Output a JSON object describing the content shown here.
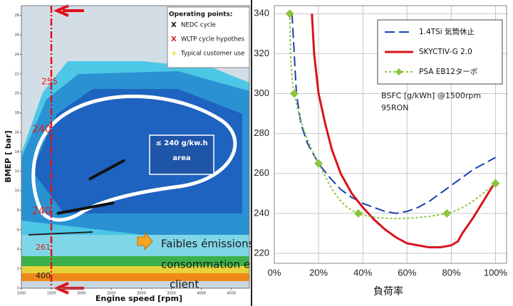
{
  "chart_data": [
    {
      "type": "map",
      "y_label": "BMEP [ bar]",
      "x_label": "Engine speed [rpm]",
      "xlim": [
        1000,
        4800
      ],
      "xticks": [
        1000,
        1500,
        2000,
        2500,
        3000,
        3500,
        4000,
        4500
      ],
      "ylim": [
        0,
        29
      ],
      "yticks": [
        0,
        2,
        4,
        6,
        8,
        10,
        12,
        14,
        16,
        18,
        20,
        22,
        24,
        26,
        28
      ],
      "legend_title": "Operating points:",
      "legend": [
        {
          "marker": "X",
          "label": "NEDC cycle",
          "color": "#111111"
        },
        {
          "marker": "X",
          "label": "WLTP cycle hypothes",
          "color": "#d42020"
        },
        {
          "marker": "+",
          "label": "Typical customer use",
          "color": "#e8d800"
        }
      ],
      "area_label": [
        "≤ 240 g/kw.h",
        "area"
      ],
      "contour_labels": [
        "255",
        "240",
        "240",
        "261",
        "400"
      ],
      "callout": [
        "Faibles émissions",
        "consommation en",
        "client"
      ]
    },
    {
      "type": "line",
      "x_label": "負荷率",
      "annotation": [
        "BSFC [g/kWh] @1500rpm",
        "95RON"
      ],
      "xlim": [
        0,
        105
      ],
      "xticks": [
        {
          "value": 0,
          "label": "0%"
        },
        {
          "value": 20,
          "label": "20%"
        },
        {
          "value": 40,
          "label": "40%"
        },
        {
          "value": 60,
          "label": "60%"
        },
        {
          "value": 80,
          "label": "80%"
        },
        {
          "value": 100,
          "label": "100%"
        }
      ],
      "ylim": [
        215,
        344
      ],
      "yticks": [
        220,
        240,
        260,
        280,
        300,
        320,
        340
      ],
      "grid": true,
      "series": [
        {
          "name": "1.4TSi 気筒休止",
          "color": "#1a3fb0",
          "style": "dashed",
          "x": [
            8,
            9,
            10,
            12,
            15,
            20,
            25,
            30,
            35,
            40,
            45,
            50,
            55,
            60,
            65,
            70,
            75,
            80,
            85,
            90,
            95,
            100
          ],
          "values": [
            340,
            320,
            300,
            285,
            275,
            265,
            258,
            252,
            248,
            245,
            243,
            241,
            240,
            241,
            243,
            246,
            250,
            254,
            258,
            262,
            265,
            268
          ]
        },
        {
          "name": "SKYCTIV-G 2.0",
          "color": "#d8141c",
          "style": "solid",
          "x": [
            17,
            18,
            20,
            23,
            26,
            30,
            35,
            40,
            45,
            50,
            55,
            60,
            65,
            70,
            75,
            80,
            83,
            85,
            90,
            95,
            100
          ],
          "values": [
            340,
            320,
            300,
            285,
            272,
            260,
            250,
            243,
            237,
            232,
            228,
            225,
            224,
            223,
            223,
            224,
            226,
            230,
            238,
            247,
            256
          ]
        },
        {
          "name": "PSA EB12ターボ",
          "color": "#8cc43c",
          "style": "dotted",
          "marker": "diamond",
          "x": [
            7,
            9,
            20,
            38,
            78,
            100
          ],
          "values": [
            340,
            300,
            265,
            240,
            240,
            255
          ]
        }
      ]
    }
  ]
}
